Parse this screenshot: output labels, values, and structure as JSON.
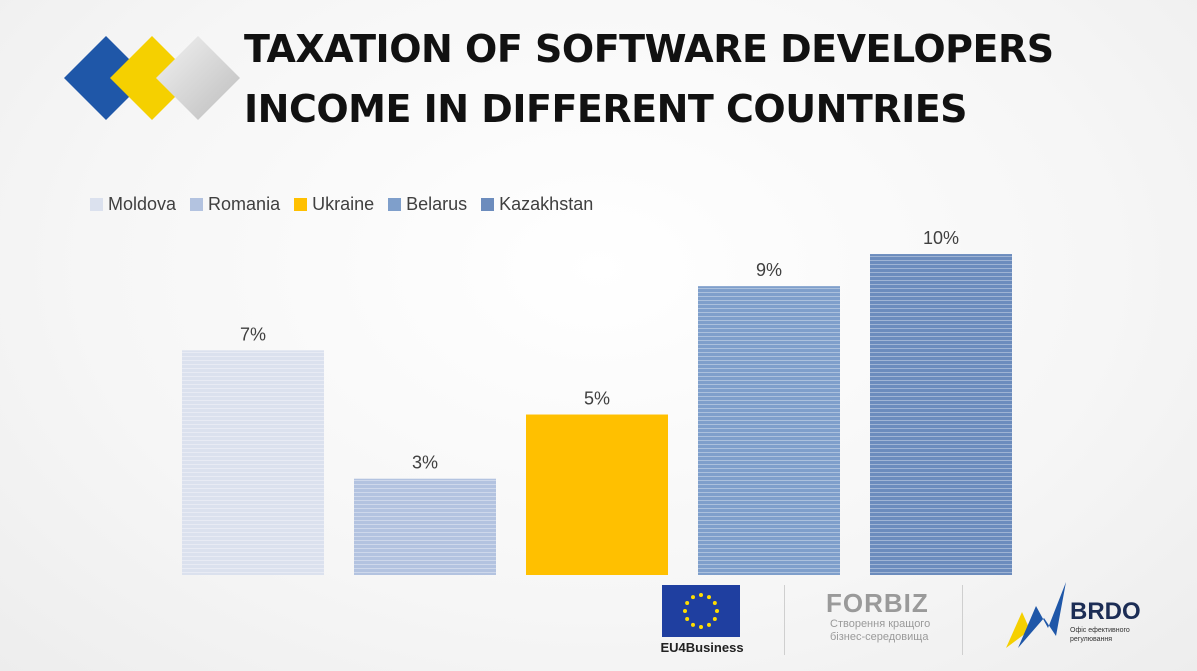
{
  "header": {
    "title_line1": "TAXATION OF SOFTWARE DEVELOPERS",
    "title_line2": "INCOME IN DIFFERENT COUNTRIES"
  },
  "colors": {
    "brand_blue": "#1f57a8",
    "brand_yellow": "#f5d000",
    "brand_gray": "#d9d9d9"
  },
  "chart_data": {
    "type": "bar",
    "categories": [
      "Moldova",
      "Romania",
      "Ukraine",
      "Belarus",
      "Kazakhstan"
    ],
    "values": [
      7,
      3,
      5,
      9,
      10
    ],
    "data_labels": [
      "7%",
      "3%",
      "5%",
      "9%",
      "10%"
    ],
    "colors": [
      "#dbe1ee",
      "#b3c3e0",
      "#ffc000",
      "#7f9fcb",
      "#6c8cbd"
    ],
    "legend": [
      "Moldova",
      "Romania",
      "Ukraine",
      "Belarus",
      "Kazakhstan"
    ],
    "legend_position": "top-left",
    "ylim": [
      0,
      10.5
    ],
    "grid": false,
    "xlabel": "",
    "ylabel": ""
  },
  "footer": {
    "eu_label": "EU4Business",
    "eu_icon": "eu-flag-icon",
    "forbiz_name": "FORBIZ",
    "forbiz_tagline_1": "Створення кращого",
    "forbiz_tagline_2": "бізнес-середовища",
    "brdo_name": "BRDO",
    "brdo_tagline_1": "Офіс ефективного",
    "brdo_tagline_2": "регулювання"
  }
}
